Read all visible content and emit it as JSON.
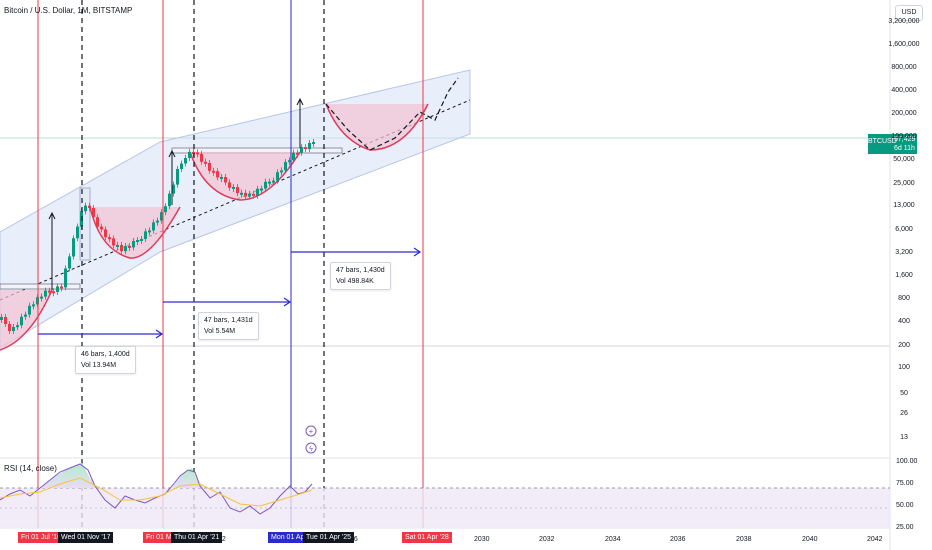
{
  "header": {
    "title": "Bitcoin / U.S. Dollar, 1M, BITSTAMP",
    "currency": "USD"
  },
  "price_tag": {
    "symbol": "BTCUSD",
    "price": "97,429",
    "countdown": "6d 11h",
    "color": "#089981"
  },
  "chart_data": [
    {
      "type": "line",
      "series_type": "candlestick",
      "symbol": "BTCUSD",
      "interval": "1M",
      "exchange": "BITSTAMP",
      "scale": "log",
      "last_price": 97429,
      "y_ticks": [
        "3,200,000",
        "1,600,000",
        "800,000",
        "400,000",
        "200,000",
        "100,000",
        "50,000",
        "25,000",
        "13,000",
        "6,000",
        "3,200",
        "1,600",
        "800",
        "400",
        "200",
        "100",
        "50",
        "26",
        "13"
      ],
      "x_ticks": [
        "2030",
        "2032",
        "2034",
        "2036",
        "2038",
        "2040",
        "2042"
      ],
      "x_partial_tick": "22",
      "x_partial_tick_2": "26",
      "date_markers": [
        {
          "label": "Fri 01 Jul '16",
          "line": "red"
        },
        {
          "label": "Wed 01 Nov '17",
          "line": "black-dashed"
        },
        {
          "label": "Fri 01 Ma",
          "line": "red"
        },
        {
          "label": "Thu 01 Apr '21",
          "line": "black-dashed"
        },
        {
          "label": "Mon 01 Apr",
          "line": "blue"
        },
        {
          "label": "Tue 01 Apr '25",
          "line": "black-dashed"
        },
        {
          "label": "Sat 01 Apr '28",
          "line": "red"
        }
      ],
      "measurements": [
        {
          "bars": "46 bars, 1,400d",
          "vol": "Vol 13.94M"
        },
        {
          "bars": "47 bars, 1,431d",
          "vol": "Vol 5.54M"
        },
        {
          "bars": "47 bars, 1,430d",
          "vol": "Vol 498.84K"
        }
      ],
      "grid": true
    },
    {
      "type": "line",
      "title": "RSI (14, close)",
      "y_ticks": [
        "100.00",
        "75.00",
        "50.00",
        "25.00"
      ],
      "ylim": [
        25,
        100
      ],
      "bands": [
        70,
        30
      ],
      "grid": false
    }
  ],
  "icons": [
    "plus-icon",
    "lightning-icon"
  ]
}
